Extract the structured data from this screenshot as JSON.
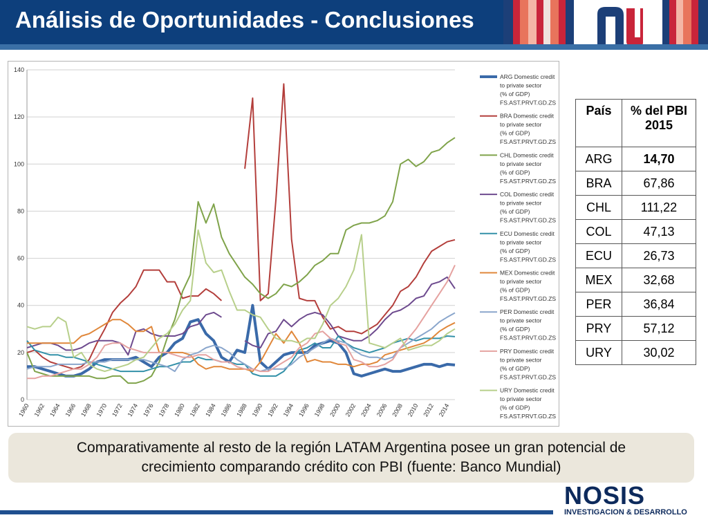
{
  "header": {
    "title": "Análisis de Oportunidades - Conclusiones",
    "stripe_colors": [
      "#1c3f78",
      "#c9253a",
      "#e8745c",
      "#f4b6a6",
      "#f0e2dd",
      "#c9253a",
      "#1c3f78"
    ]
  },
  "table": {
    "col1_header": "País",
    "col2_header": "% del PBI 2015",
    "rows": [
      {
        "country": "ARG",
        "value": "14,70",
        "bold": true
      },
      {
        "country": "BRA",
        "value": "67,86"
      },
      {
        "country": "CHL",
        "value": "111,22"
      },
      {
        "country": "COL",
        "value": "47,13"
      },
      {
        "country": "ECU",
        "value": "26,73"
      },
      {
        "country": "MEX",
        "value": "32,68"
      },
      {
        "country": "PER",
        "value": "36,84"
      },
      {
        "country": "PRY",
        "value": "57,12"
      },
      {
        "country": "URY",
        "value": "30,02"
      }
    ]
  },
  "summary": {
    "line1": "Comparativamente al resto de la región LATAM Argentina posee un gran potencial de",
    "line2": "crecimiento comparando crédito con PBI (fuente: Banco Mundial)"
  },
  "footer": {
    "brand": "NOSIS",
    "tagline": "INVESTIGACION & DESARROLLO"
  },
  "chart_data": {
    "type": "line",
    "x": [
      1960,
      1961,
      1962,
      1963,
      1964,
      1965,
      1966,
      1967,
      1968,
      1969,
      1970,
      1971,
      1972,
      1973,
      1974,
      1975,
      1976,
      1977,
      1978,
      1979,
      1980,
      1981,
      1982,
      1983,
      1984,
      1985,
      1986,
      1987,
      1988,
      1989,
      1990,
      1991,
      1992,
      1993,
      1994,
      1995,
      1996,
      1997,
      1998,
      1999,
      2000,
      2001,
      2002,
      2003,
      2004,
      2005,
      2006,
      2007,
      2008,
      2009,
      2010,
      2011,
      2012,
      2013,
      2014,
      2015
    ],
    "x_ticks": [
      1960,
      1962,
      1964,
      1966,
      1968,
      1970,
      1972,
      1974,
      1976,
      1978,
      1980,
      1982,
      1984,
      1986,
      1988,
      1990,
      1992,
      1994,
      1996,
      1998,
      2000,
      2002,
      2004,
      2006,
      2008,
      2010,
      2012,
      2014
    ],
    "y_ticks": [
      0,
      20,
      40,
      60,
      80,
      100,
      120,
      140
    ],
    "ylim": [
      0,
      140
    ],
    "grid": true,
    "legend_position": "right",
    "series": [
      {
        "name": "ARG Domestic credit to private sector (% of GDP) FS.AST.PRVT.GD.ZS",
        "color": "#3a6aa9",
        "width": 4,
        "values": [
          14,
          14,
          13,
          12,
          11,
          10,
          10,
          11,
          13,
          16,
          17,
          17,
          17,
          17,
          18,
          16,
          14,
          18,
          20,
          24,
          26,
          33,
          34,
          28,
          25,
          18,
          16,
          21,
          20,
          40,
          16,
          13,
          16,
          19,
          20,
          20,
          20,
          23,
          24,
          25,
          24,
          20,
          11,
          10,
          11,
          12,
          13,
          12,
          12,
          13,
          14,
          15,
          15,
          14,
          15,
          14.7
        ]
      },
      {
        "name": "BRA Domestic credit to private sector (% of GDP) FS.AST.PRVT.GD.ZS",
        "color": "#b33e3b",
        "width": 2,
        "values": [
          20,
          21,
          18,
          16,
          15,
          14,
          13,
          14,
          17,
          24,
          30,
          37,
          41,
          44,
          48,
          55,
          55,
          55,
          50,
          50,
          43,
          44,
          44,
          47,
          45,
          42,
          null,
          null,
          98,
          128,
          42,
          45,
          85,
          134,
          68,
          43,
          42,
          42,
          35,
          30,
          31,
          29,
          29,
          28,
          30,
          32,
          36,
          40,
          46,
          48,
          52,
          58,
          63,
          65,
          67,
          67.86
        ]
      },
      {
        "name": "CHL Domestic credit to private sector (% of GDP) FS.AST.PRVT.GD.ZS",
        "color": "#7fa34a",
        "width": 2,
        "values": [
          20,
          12,
          11,
          10,
          10,
          10,
          10,
          10,
          10,
          9,
          9,
          10,
          10,
          7,
          7,
          8,
          10,
          16,
          26,
          34,
          46,
          53,
          84,
          75,
          83,
          69,
          62,
          57,
          52,
          49,
          45,
          43,
          45,
          49,
          48,
          50,
          53,
          57,
          59,
          62,
          62,
          72,
          74,
          75,
          75,
          76,
          78,
          84,
          100,
          102,
          99,
          101,
          105,
          106,
          109,
          111.22
        ]
      },
      {
        "name": "COL Domestic credit to private sector (% of GDP) FS.AST.PRVT.GD.ZS",
        "color": "#6d4a8e",
        "width": 2,
        "values": [
          22,
          23,
          24,
          24,
          23,
          21,
          21,
          22,
          24,
          25,
          25,
          25,
          24,
          19,
          29,
          30,
          28,
          27,
          27,
          27,
          28,
          31,
          32,
          36,
          37,
          35,
          null,
          null,
          25,
          23,
          22,
          28,
          29,
          34,
          31,
          34,
          36,
          37,
          36,
          32,
          27,
          26,
          25,
          25,
          27,
          30,
          34,
          37,
          38,
          40,
          43,
          44,
          49,
          50,
          52,
          47.13
        ]
      },
      {
        "name": "ECU Domestic credit to private sector (% of GDP) FS.AST.PRVT.GD.ZS",
        "color": "#3290a8",
        "width": 2,
        "values": [
          25,
          21,
          20,
          19,
          19,
          18,
          18,
          17,
          16,
          15,
          14,
          13,
          12,
          12,
          12,
          12,
          13,
          14,
          14,
          15,
          16,
          16,
          18,
          17,
          17,
          16,
          16,
          15,
          15,
          11,
          10,
          10,
          10,
          12,
          16,
          21,
          22,
          24,
          22,
          22,
          27,
          24,
          22,
          21,
          20,
          21,
          22,
          24,
          25,
          26,
          25,
          26,
          26,
          26,
          27,
          26.73
        ]
      },
      {
        "name": "MEX Domestic credit to private sector (% of GDP) FS.AST.PRVT.GD.ZS",
        "color": "#e0873a",
        "width": 2,
        "values": [
          24,
          24,
          24,
          24,
          24,
          24,
          24,
          27,
          28,
          30,
          32,
          34,
          34,
          32,
          29,
          29,
          31,
          20,
          20,
          20,
          20,
          19,
          15,
          13,
          14,
          14,
          13,
          13,
          13,
          12,
          16,
          22,
          28,
          24,
          29,
          24,
          16,
          17,
          16,
          16,
          15,
          15,
          14,
          15,
          15,
          16,
          19,
          20,
          21,
          22,
          23,
          24,
          26,
          29,
          31,
          32.68
        ]
      },
      {
        "name": "PER Domestic credit to private sector (% of GDP) FS.AST.PRVT.GD.ZS",
        "color": "#8aa6cc",
        "width": 2,
        "values": [
          13,
          14,
          14,
          14,
          15,
          15,
          15,
          15,
          16,
          16,
          16,
          17,
          17,
          17,
          17,
          17,
          16,
          15,
          14,
          12,
          17,
          19,
          20,
          22,
          23,
          22,
          20,
          17,
          15,
          13,
          12,
          13,
          13,
          13,
          15,
          18,
          20,
          22,
          24,
          26,
          25,
          24,
          21,
          19,
          18,
          18,
          17,
          18,
          22,
          24,
          26,
          28,
          30,
          33,
          35,
          36.84
        ]
      },
      {
        "name": "PRY Domestic credit to private sector (% of GDP) FS.AST.PRVT.GD.ZS",
        "color": "#e5a2a0",
        "width": 2,
        "values": [
          9,
          9,
          10,
          10,
          11,
          12,
          13,
          13,
          15,
          18,
          23,
          24,
          24,
          22,
          21,
          20,
          20,
          20,
          20,
          19,
          18,
          18,
          19,
          19,
          17,
          16,
          16,
          14,
          13,
          13,
          12,
          12,
          14,
          16,
          18,
          22,
          24,
          28,
          29,
          26,
          24,
          23,
          17,
          16,
          14,
          14,
          15,
          17,
          22,
          26,
          30,
          35,
          40,
          45,
          50,
          57.12
        ]
      },
      {
        "name": "URY Domestic credit to private sector (% of GDP) FS.AST.PRVT.GD.ZS",
        "color": "#b7cf8a",
        "width": 2,
        "values": [
          31,
          30,
          31,
          31,
          35,
          33,
          18,
          20,
          15,
          13,
          12,
          13,
          14,
          15,
          17,
          18,
          22,
          26,
          28,
          32,
          38,
          42,
          72,
          58,
          54,
          55,
          46,
          38,
          38,
          36,
          35,
          30,
          26,
          25,
          25,
          24,
          26,
          26,
          32,
          40,
          43,
          48,
          55,
          70,
          24,
          23,
          22,
          24,
          26,
          21,
          22,
          23,
          23,
          25,
          28,
          30.02
        ]
      }
    ]
  }
}
